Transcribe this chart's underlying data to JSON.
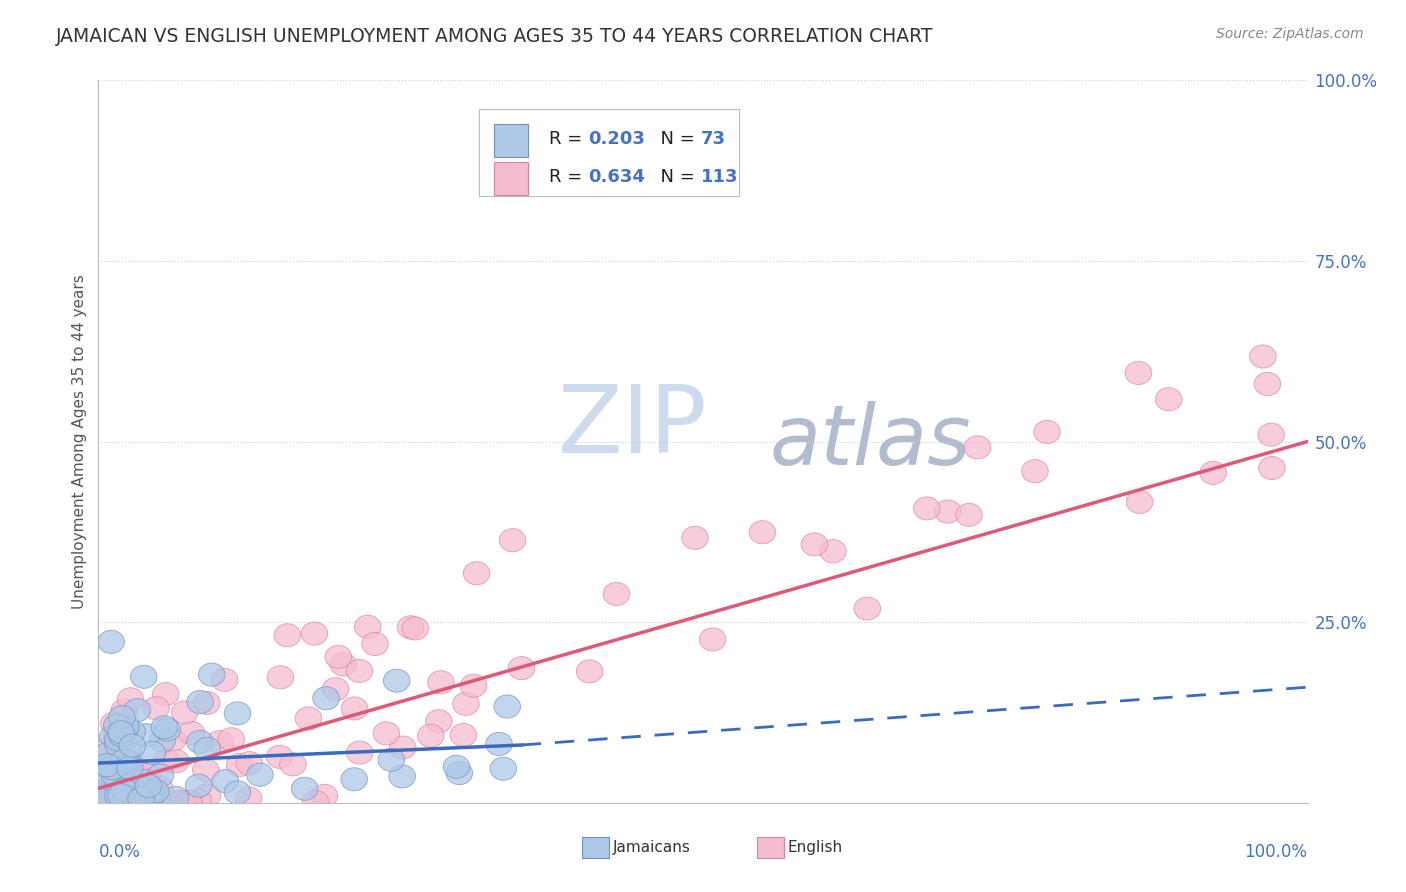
{
  "title": "JAMAICAN VS ENGLISH UNEMPLOYMENT AMONG AGES 35 TO 44 YEARS CORRELATION CHART",
  "source": "Source: ZipAtlas.com",
  "ylabel": "Unemployment Among Ages 35 to 44 years",
  "watermark_zip": "ZIP",
  "watermark_atlas": "atlas",
  "legend_jamaicans_label": "Jamaicans",
  "legend_english_label": "English",
  "jamaicans_fill": "#adc8e8",
  "jamaicans_edge": "#7090c0",
  "english_fill": "#f5bcd0",
  "english_edge": "#e080a0",
  "trend_jamaicans_solid": "#3a6bbf",
  "trend_english_solid": "#e05878",
  "trend_jamaicans_dash": "#7090c0",
  "legend_r_n_color": "#4472c4",
  "legend_text_color": "#222222",
  "ytick_color": "#4472c4",
  "xtick_color": "#4472c4",
  "background": "#ffffff",
  "R_jamaicans": 0.203,
  "N_jamaicans": 73,
  "R_english": 0.634,
  "N_english": 113,
  "grid_color": "#cccccc",
  "watermark_color": "#c8d8ed",
  "watermark_atlas_color": "#8090b0"
}
